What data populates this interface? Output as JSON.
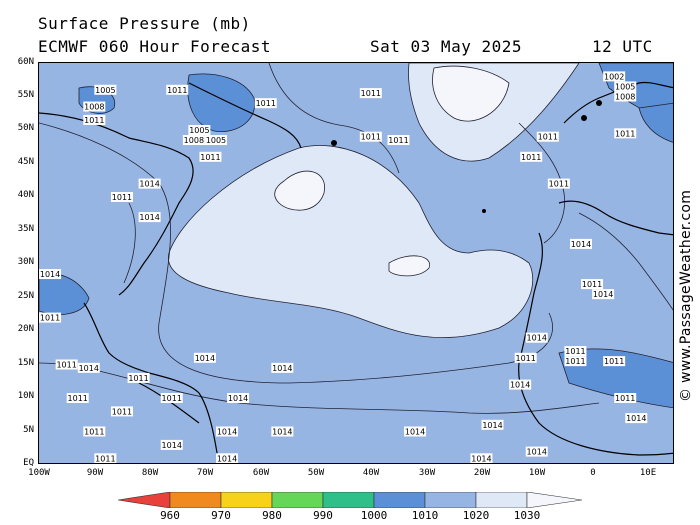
{
  "header": {
    "title": "Surface Pressure (mb)",
    "model_line": "ECMWF 060 Hour Forecast",
    "date": "Sat 03 May 2025",
    "time": "12 UTC"
  },
  "latitudes": [
    "60N",
    "55N",
    "50N",
    "45N",
    "40N",
    "35N",
    "30N",
    "25N",
    "20N",
    "15N",
    "10N",
    "5N",
    "EQ"
  ],
  "longitudes": [
    "100W",
    "90W",
    "80W",
    "70W",
    "60W",
    "50W",
    "40W",
    "30W",
    "20W",
    "10W",
    "0",
    "10E"
  ],
  "colorbar": {
    "ticks": [
      "960",
      "970",
      "980",
      "990",
      "1000",
      "1010",
      "1020",
      "1030"
    ],
    "colors": [
      "#e8403a",
      "#f08a1e",
      "#f7d21a",
      "#66d659",
      "#2fbf88",
      "#5b8fd6",
      "#97b5e3",
      "#dfe8f6",
      "#f4f6fb"
    ]
  },
  "pressure_labels": [
    {
      "t": "1005",
      "c": [
        -88,
        56
      ]
    },
    {
      "t": "1011",
      "c": [
        -75,
        56
      ]
    },
    {
      "t": "1008",
      "c": [
        -90,
        53.5
      ]
    },
    {
      "t": "1011",
      "c": [
        -90,
        51.5
      ]
    },
    {
      "t": "1005",
      "c": [
        -71,
        50
      ]
    },
    {
      "t": "1008",
      "c": [
        -72,
        48.5
      ]
    },
    {
      "t": "1005",
      "c": [
        -68,
        48.5
      ]
    },
    {
      "t": "1011",
      "c": [
        -69,
        46
      ]
    },
    {
      "t": "1011",
      "c": [
        -59,
        54
      ]
    },
    {
      "t": "1011",
      "c": [
        -40,
        55.5
      ]
    },
    {
      "t": "1011",
      "c": [
        -40,
        49
      ]
    },
    {
      "t": "1011",
      "c": [
        -35,
        48.5
      ]
    },
    {
      "t": "1011",
      "c": [
        -8,
        49
      ]
    },
    {
      "t": "1011",
      "c": [
        -11,
        46
      ]
    },
    {
      "t": "1011",
      "c": [
        -6,
        42
      ]
    },
    {
      "t": "1002",
      "c": [
        4,
        58
      ]
    },
    {
      "t": "1005",
      "c": [
        6,
        56.5
      ]
    },
    {
      "t": "1008",
      "c": [
        6,
        55
      ]
    },
    {
      "t": "1011",
      "c": [
        6,
        49.5
      ]
    },
    {
      "t": "1014",
      "c": [
        -80,
        42
      ]
    },
    {
      "t": "1011",
      "c": [
        -85,
        40
      ]
    },
    {
      "t": "1014",
      "c": [
        -80,
        37
      ]
    },
    {
      "t": "1014",
      "c": [
        -98,
        28.5
      ]
    },
    {
      "t": "1014",
      "c": [
        -2,
        33
      ]
    },
    {
      "t": "1011",
      "c": [
        0,
        27
      ]
    },
    {
      "t": "1014",
      "c": [
        2,
        25.5
      ]
    },
    {
      "t": "1014",
      "c": [
        -10,
        19
      ]
    },
    {
      "t": "1011",
      "c": [
        -3,
        17
      ]
    },
    {
      "t": "1011",
      "c": [
        -3,
        15.5
      ]
    },
    {
      "t": "1011",
      "c": [
        4,
        15.5
      ]
    },
    {
      "t": "1011",
      "c": [
        -12,
        16
      ]
    },
    {
      "t": "1014",
      "c": [
        -13,
        12
      ]
    },
    {
      "t": "1014",
      "c": [
        -70,
        16
      ]
    },
    {
      "t": "1014",
      "c": [
        -56,
        14.5
      ]
    },
    {
      "t": "1014",
      "c": [
        -64,
        10
      ]
    },
    {
      "t": "1014",
      "c": [
        -56,
        5
      ]
    },
    {
      "t": "1014",
      "c": [
        -32,
        5
      ]
    },
    {
      "t": "1014",
      "c": [
        -18,
        6
      ]
    },
    {
      "t": "1014",
      "c": [
        -10,
        2
      ]
    },
    {
      "t": "1014",
      "c": [
        -20,
        1
      ]
    },
    {
      "t": "1011",
      "c": [
        -93,
        10
      ]
    },
    {
      "t": "1011",
      "c": [
        -90,
        5
      ]
    },
    {
      "t": "1011",
      "c": [
        -85,
        8
      ]
    },
    {
      "t": "1011",
      "c": [
        -82,
        13
      ]
    },
    {
      "t": "1011",
      "c": [
        -95,
        15
      ]
    },
    {
      "t": "1011",
      "c": [
        -76,
        10
      ]
    },
    {
      "t": "1014",
      "c": [
        -76,
        3
      ]
    },
    {
      "t": "1014",
      "c": [
        -66,
        5
      ]
    },
    {
      "t": "1014",
      "c": [
        -66,
        1
      ]
    },
    {
      "t": "1011",
      "c": [
        -88,
        1
      ]
    },
    {
      "t": "1011",
      "c": [
        6,
        10
      ]
    },
    {
      "t": "1014",
      "c": [
        8,
        7
      ]
    },
    {
      "t": "1011",
      "c": [
        -98,
        22
      ]
    },
    {
      "t": "1014",
      "c": [
        -91,
        14.5
      ]
    }
  ],
  "watermark": "© www.PassageWeather.com"
}
